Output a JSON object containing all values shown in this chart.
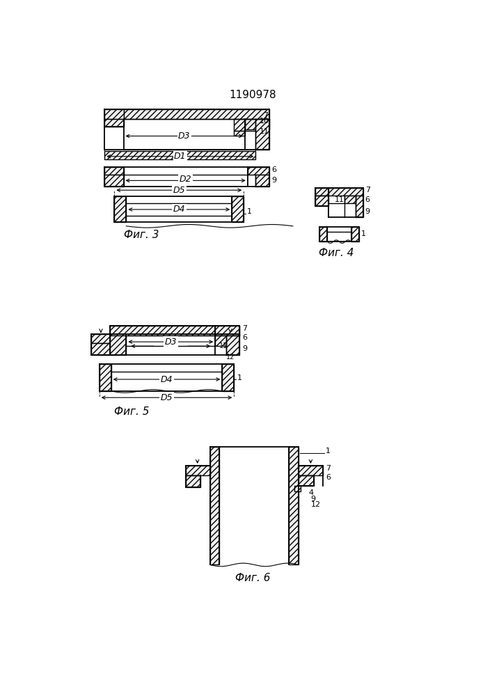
{
  "title": "1190978",
  "title_fontsize": 11,
  "fig_caption_fontsize": 11,
  "label_fontsize": 9,
  "bg_color": "#ffffff",
  "line_color": "#000000",
  "fig3_caption": "Фиг. 3",
  "fig4_caption": "Фиг. 4",
  "fig5_caption": "Фиг. 5",
  "fig6_caption": "Фиг. 6"
}
